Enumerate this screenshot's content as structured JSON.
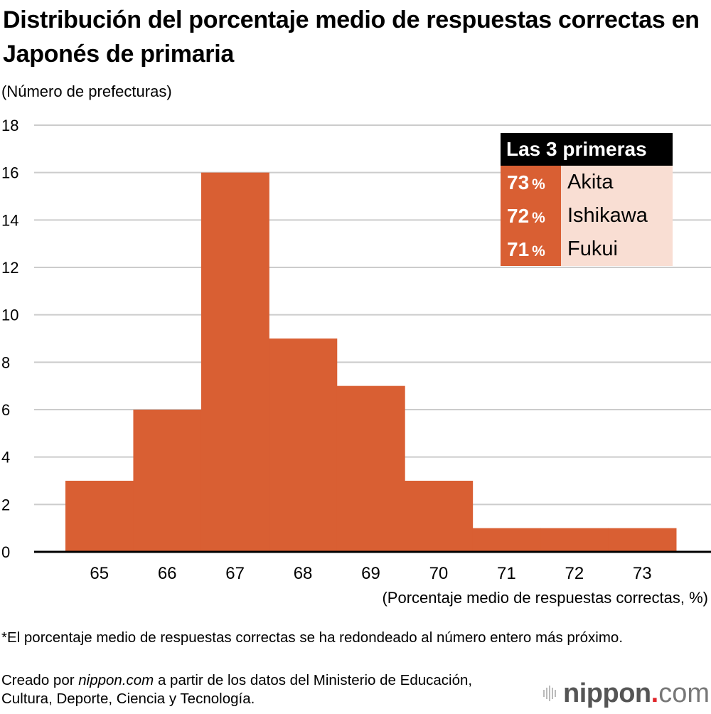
{
  "title": "Distribución del porcentaje medio de respuestas correctas en Japonés de primaria",
  "colors": {
    "bar": "#d95f33",
    "legend_bg_light": "#f9ded3",
    "legend_header_bg": "#000000",
    "grid": "#cccccc",
    "axis": "#000000",
    "logo_dot": "#e0262b"
  },
  "legend": {
    "header": "Las 3 primeras",
    "entries": [
      {
        "value": "73",
        "unit": "%",
        "name": "Akita"
      },
      {
        "value": "72",
        "unit": "%",
        "name": "Ishikawa"
      },
      {
        "value": "71",
        "unit": "%",
        "name": "Fukui"
      }
    ]
  },
  "footnote": "*El porcentaje medio de respuestas correctas se ha redondeado al número entero más próximo.",
  "source": {
    "prefix": "Creado por ",
    "site": "nippon.com",
    "suffix": " a partir de los datos del Ministerio de Educación, Cultura, Deporte, Ciencia y Tecnología."
  },
  "logo": {
    "word": "nippon",
    "dot": ".",
    "tld": "com"
  },
  "chart_data": {
    "type": "bar",
    "title": "Distribución del porcentaje medio de respuestas correctas en Japonés de primaria",
    "xlabel": "(Porcentaje medio de respuestas correctas, %)",
    "ylabel": "(Número de prefecturas)",
    "categories": [
      "65",
      "66",
      "67",
      "68",
      "69",
      "70",
      "71",
      "72",
      "73"
    ],
    "values": [
      3,
      6,
      16,
      9,
      7,
      3,
      1,
      1,
      1
    ],
    "ylim": [
      0,
      18
    ],
    "yticks": [
      0,
      2,
      4,
      6,
      8,
      10,
      12,
      14,
      16,
      18
    ],
    "grid": true,
    "legend_position": "top-right"
  }
}
